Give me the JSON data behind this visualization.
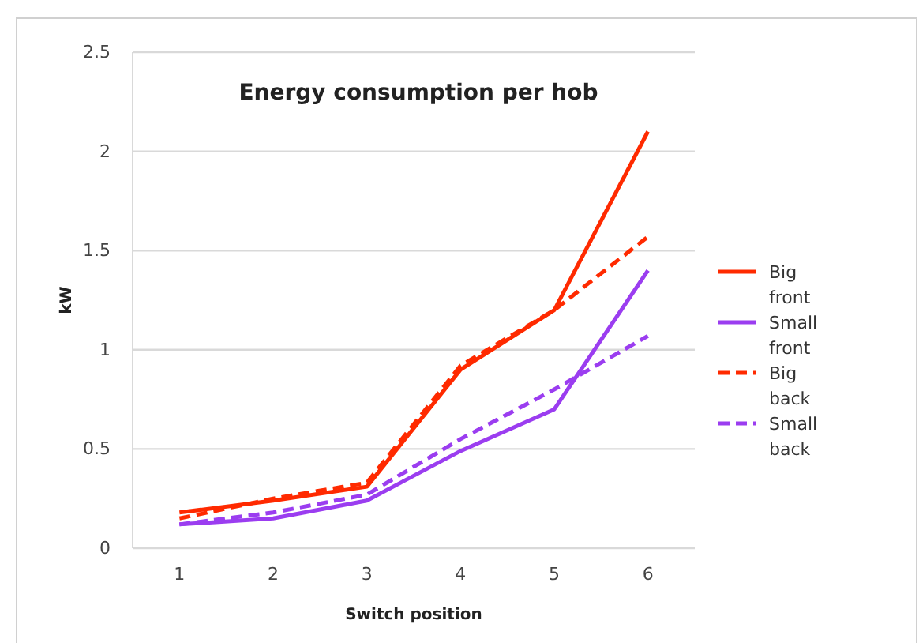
{
  "chart_data": {
    "type": "line",
    "title": "Energy consumption per hob",
    "xlabel": "Switch position",
    "ylabel": "kW",
    "categories": [
      "1",
      "2",
      "3",
      "4",
      "5",
      "6"
    ],
    "series": [
      {
        "name": "Big front",
        "color": "#ff2a00",
        "line_style": "solid",
        "values": [
          0.18,
          0.24,
          0.31,
          0.9,
          1.2,
          2.1
        ]
      },
      {
        "name": "Small front",
        "color": "#9b3df0",
        "line_style": "solid",
        "values": [
          0.12,
          0.15,
          0.24,
          0.49,
          0.7,
          1.4
        ]
      },
      {
        "name": "Big back",
        "color": "#ff2a00",
        "line_style": "dashed",
        "values": [
          0.15,
          0.25,
          0.33,
          0.92,
          1.2,
          1.57
        ]
      },
      {
        "name": "Small back",
        "color": "#9b3df0",
        "line_style": "dashed",
        "values": [
          0.12,
          0.18,
          0.27,
          0.55,
          0.8,
          1.07
        ]
      }
    ],
    "ylim": [
      0,
      2.5
    ],
    "yticks": [
      0,
      0.5,
      1,
      1.5,
      2,
      2.5
    ],
    "grid": "y",
    "legend": "right",
    "marker": "none"
  }
}
